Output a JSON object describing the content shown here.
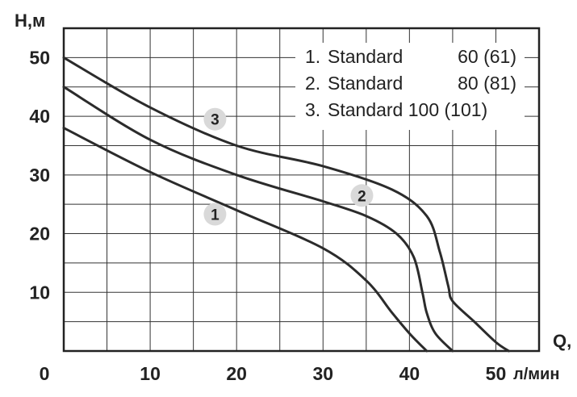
{
  "chart_data": {
    "type": "line",
    "xlabel": "Q,",
    "xunit": "л/мин",
    "ylabel": "H,м",
    "xlim": [
      0,
      55
    ],
    "ylim": [
      0,
      55
    ],
    "x_ticks": [
      "0",
      "10",
      "20",
      "30",
      "40",
      "50"
    ],
    "y_ticks": [
      "10",
      "20",
      "30",
      "40",
      "50"
    ],
    "grid": true,
    "legend_placement": "top-right",
    "legend": [
      {
        "num": "1.",
        "name": "Standard",
        "value": "60 (61)"
      },
      {
        "num": "2.",
        "name": "Standard",
        "value": "80 (81)"
      },
      {
        "num": "3.",
        "name": "Standard 100 (101)",
        "value": ""
      }
    ],
    "series": [
      {
        "marker": "1",
        "x": [
          0,
          10,
          20,
          30,
          35,
          38,
          40,
          42
        ],
        "y": [
          38,
          30.5,
          24,
          17.5,
          12,
          6.5,
          3,
          0
        ]
      },
      {
        "marker": "2",
        "x": [
          0,
          10,
          20,
          30,
          35,
          38.5,
          40.5,
          41.5,
          42,
          43,
          45
        ],
        "y": [
          45,
          36,
          30,
          25.5,
          23,
          20,
          16,
          10,
          6.5,
          3,
          0
        ]
      },
      {
        "marker": "3",
        "x": [
          0,
          10,
          20,
          30,
          38,
          42,
          43.5,
          44.5,
          45,
          47.5,
          50,
          51.5
        ],
        "y": [
          50,
          41.5,
          35,
          31.5,
          27.5,
          23,
          17,
          11,
          8.5,
          5,
          1.5,
          0
        ]
      }
    ],
    "markers": [
      {
        "label": "1",
        "x": 17.5,
        "y": 23.3
      },
      {
        "label": "2",
        "x": 34.5,
        "y": 26.5
      },
      {
        "label": "3",
        "x": 17.5,
        "y": 39.5
      }
    ]
  }
}
